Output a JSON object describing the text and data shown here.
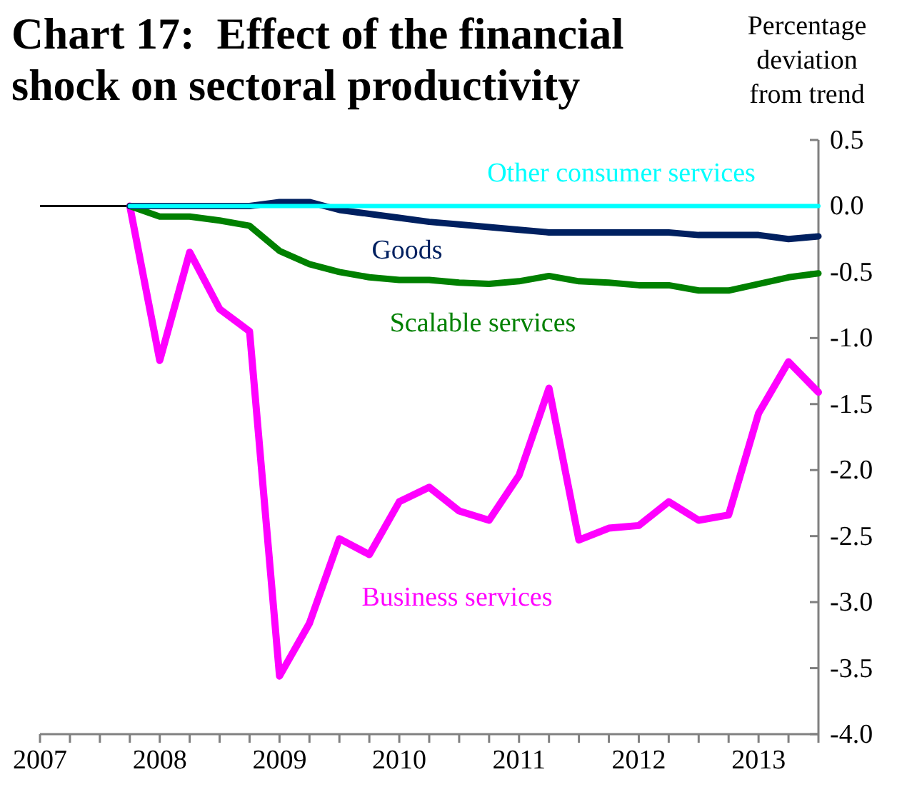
{
  "chart_data": {
    "type": "line",
    "title": "Chart 17:  Effect of the financial shock on sectoral productivity",
    "ylabel": "Percentage deviation from trend",
    "x": [
      2007.75,
      2008,
      2008.25,
      2008.5,
      2008.75,
      2009,
      2009.25,
      2009.5,
      2009.75,
      2010,
      2010.25,
      2010.5,
      2010.75,
      2011,
      2011.25,
      2011.5,
      2011.75,
      2012,
      2012.25,
      2012.5,
      2012.75,
      2013,
      2013.25,
      2013.5
    ],
    "series": [
      {
        "name": "Other consumer services",
        "color": "#00ffff",
        "values": [
          0,
          0,
          0,
          0,
          0,
          0,
          0,
          0,
          0,
          0,
          0,
          0,
          0,
          0,
          0,
          0,
          0,
          0,
          0,
          0,
          0,
          0,
          0,
          0
        ]
      },
      {
        "name": "Goods",
        "color": "#002060",
        "values": [
          0,
          0,
          0,
          0,
          0,
          0.03,
          0.03,
          -0.03,
          -0.06,
          -0.09,
          -0.12,
          -0.14,
          -0.16,
          -0.18,
          -0.2,
          -0.2,
          -0.2,
          -0.2,
          -0.2,
          -0.22,
          -0.22,
          -0.22,
          -0.25,
          -0.23
        ]
      },
      {
        "name": "Scalable services",
        "color": "#008000",
        "values": [
          0,
          -0.08,
          -0.08,
          -0.11,
          -0.15,
          -0.34,
          -0.44,
          -0.5,
          -0.54,
          -0.56,
          -0.56,
          -0.58,
          -0.59,
          -0.57,
          -0.53,
          -0.57,
          -0.58,
          -0.6,
          -0.6,
          -0.64,
          -0.64,
          -0.59,
          -0.54,
          -0.51
        ]
      },
      {
        "name": "Business services",
        "color": "#ff00ff",
        "values": [
          0,
          -1.17,
          -0.35,
          -0.78,
          -0.95,
          -3.56,
          -3.16,
          -2.52,
          -2.64,
          -2.24,
          -2.13,
          -2.31,
          -2.38,
          -2.04,
          -1.38,
          -2.53,
          -2.44,
          -2.42,
          -2.24,
          -2.38,
          -2.34,
          -1.57,
          -1.18,
          -1.41
        ]
      }
    ],
    "xlim": [
      2007,
      2013.5
    ],
    "xticks": [
      2007,
      {
        "value": 2007.25,
        "label": null
      },
      {
        "value": 2007.5,
        "label": null
      },
      {
        "value": 2007.75,
        "label": null
      },
      2008,
      {
        "value": 2008.25,
        "label": null
      },
      {
        "value": 2008.5,
        "label": null
      },
      {
        "value": 2008.75,
        "label": null
      },
      2009,
      {
        "value": 2009.25,
        "label": null
      },
      {
        "value": 2009.5,
        "label": null
      },
      {
        "value": 2009.75,
        "label": null
      },
      2010,
      {
        "value": 2010.25,
        "label": null
      },
      {
        "value": 2010.5,
        "label": null
      },
      {
        "value": 2010.75,
        "label": null
      },
      2011,
      {
        "value": 2011.25,
        "label": null
      },
      {
        "value": 2011.5,
        "label": null
      },
      {
        "value": 2011.75,
        "label": null
      },
      2012,
      {
        "value": 2012.25,
        "label": null
      },
      {
        "value": 2012.5,
        "label": null
      },
      {
        "value": 2012.75,
        "label": null
      },
      2013,
      {
        "value": 2013.25,
        "label": null
      },
      {
        "value": 2013.5,
        "label": null
      }
    ],
    "ylim": [
      -4,
      0.5
    ],
    "yticks": [
      0.5,
      {
        "value": 0,
        "label": "0.0"
      },
      -0.5,
      {
        "value": -1,
        "label": "-1.0"
      },
      -1.5,
      {
        "value": -2,
        "label": "-2.0"
      },
      -2.5,
      {
        "value": -3,
        "label": "-3.0"
      },
      -3.5,
      {
        "value": -4,
        "label": "-4.0"
      }
    ],
    "ref_lines": [
      {
        "axis": "y",
        "value": 0,
        "color": "#000000"
      }
    ],
    "grid": false,
    "marker": "none",
    "line_style": "solid"
  }
}
